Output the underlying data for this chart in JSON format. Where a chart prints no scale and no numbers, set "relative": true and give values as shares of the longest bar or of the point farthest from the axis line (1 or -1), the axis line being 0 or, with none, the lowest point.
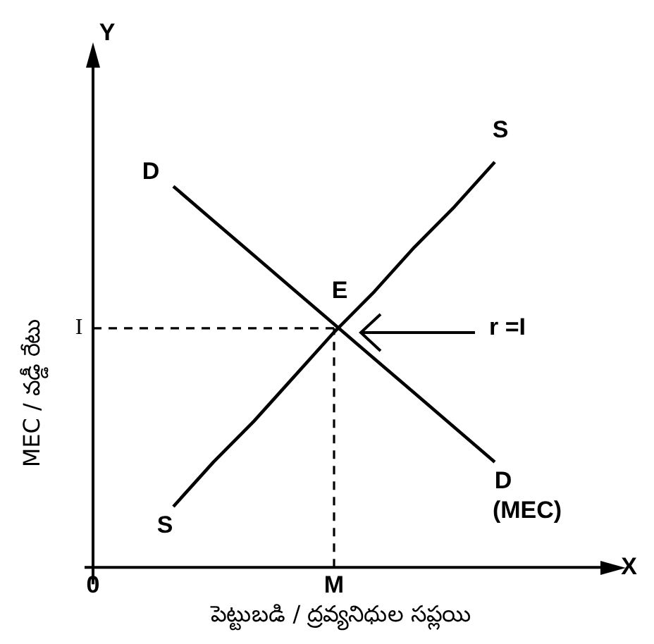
{
  "chart_data": {
    "type": "line",
    "relative": true,
    "xlabel": "పెట్టుబడి / ద్రవ్యనిధుల సప్లయి",
    "ylabel": "MEC / వడ్డీ రేటు",
    "categories": [
      "0",
      null,
      null,
      null,
      null,
      null,
      "M",
      null,
      null,
      null,
      null,
      null,
      null
    ],
    "series": [
      {
        "name": "D",
        "color": "#000000",
        "values": [
          null,
          null,
          0.94,
          0.855,
          0.77,
          0.685,
          0.6,
          0.515,
          0.43,
          0.345,
          0.26,
          null,
          null
        ]
      },
      {
        "name": "S",
        "color": "#000000",
        "values": [
          null,
          null,
          0.15,
          0.26,
          0.36,
          0.47,
          0.58,
          0.68,
          0.79,
          0.89,
          1.0,
          null,
          null
        ]
      }
    ],
    "ref_lines": [
      {
        "axis": "y",
        "value": 0.59,
        "label": "I",
        "line_style": "dashed"
      },
      {
        "axis": "x",
        "value": "M",
        "line_style": "dashed"
      }
    ],
    "annotations": [
      "E",
      "r =I",
      "(MEC)",
      "X",
      "Y"
    ],
    "marker": "none",
    "legend": false
  }
}
